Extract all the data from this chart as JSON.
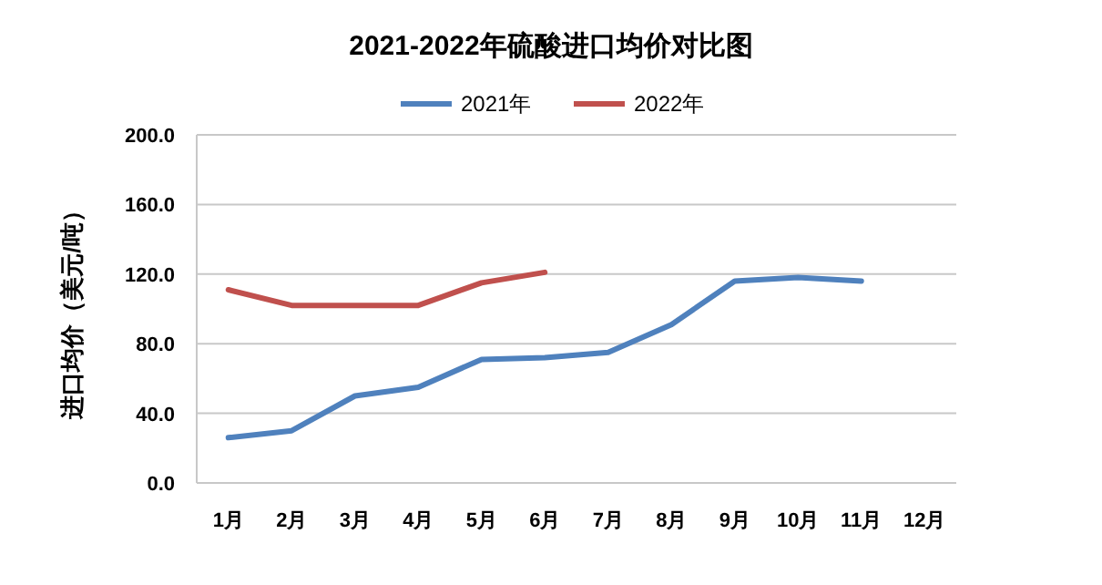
{
  "chart_data": {
    "type": "line",
    "title": "2021-2022年硫酸进口均价对比图",
    "ylabel": "进口均价（美元/吨）",
    "categories": [
      "1月",
      "2月",
      "3月",
      "4月",
      "5月",
      "6月",
      "7月",
      "8月",
      "9月",
      "10月",
      "11月",
      "12月"
    ],
    "series": [
      {
        "name": "2021年",
        "color": "#4f81bd",
        "values": [
          26,
          30,
          50,
          55,
          71,
          72,
          75,
          91,
          116,
          118,
          116,
          null
        ]
      },
      {
        "name": "2022年",
        "color": "#c0504d",
        "values": [
          111,
          102,
          102,
          102,
          115,
          121,
          null,
          null,
          null,
          null,
          null,
          null
        ]
      }
    ],
    "ylim": [
      0,
      200
    ],
    "yticks": [
      {
        "value": 0,
        "label": "0.0"
      },
      {
        "value": 40,
        "label": "40.0"
      },
      {
        "value": 80,
        "label": "80.0"
      },
      {
        "value": 120,
        "label": "120.0"
      },
      {
        "value": 160,
        "label": "160.0"
      },
      {
        "value": 200,
        "label": "200.0"
      }
    ],
    "grid": "y",
    "legend": "top",
    "marker": "none",
    "line_style": "solid"
  }
}
